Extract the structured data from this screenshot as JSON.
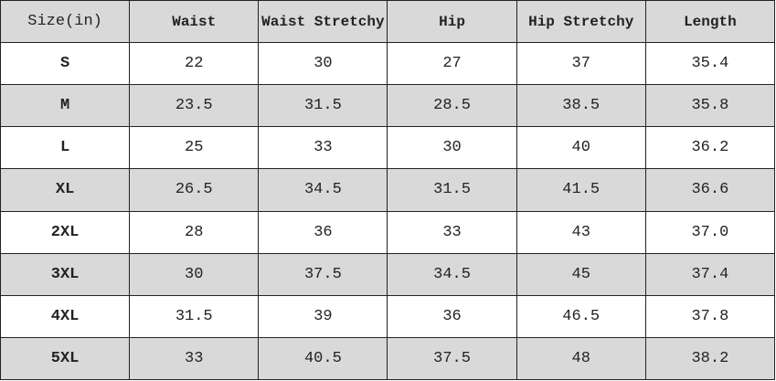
{
  "table": {
    "header": [
      "Size(in)",
      "Waist",
      "Waist Stretchy",
      "Hip",
      "Hip Stretchy",
      "Length"
    ],
    "rows": [
      [
        "S",
        "22",
        "30",
        "27",
        "37",
        "35.4"
      ],
      [
        "M",
        "23.5",
        "31.5",
        "28.5",
        "38.5",
        "35.8"
      ],
      [
        "L",
        "25",
        "33",
        "30",
        "40",
        "36.2"
      ],
      [
        "XL",
        "26.5",
        "34.5",
        "31.5",
        "41.5",
        "36.6"
      ],
      [
        "2XL",
        "28",
        "36",
        "33",
        "43",
        "37.0"
      ],
      [
        "3XL",
        "30",
        "37.5",
        "34.5",
        "45",
        "37.4"
      ],
      [
        "4XL",
        "31.5",
        "39",
        "36",
        "46.5",
        "37.8"
      ],
      [
        "5XL",
        "33",
        "40.5",
        "37.5",
        "48",
        "38.2"
      ]
    ]
  }
}
